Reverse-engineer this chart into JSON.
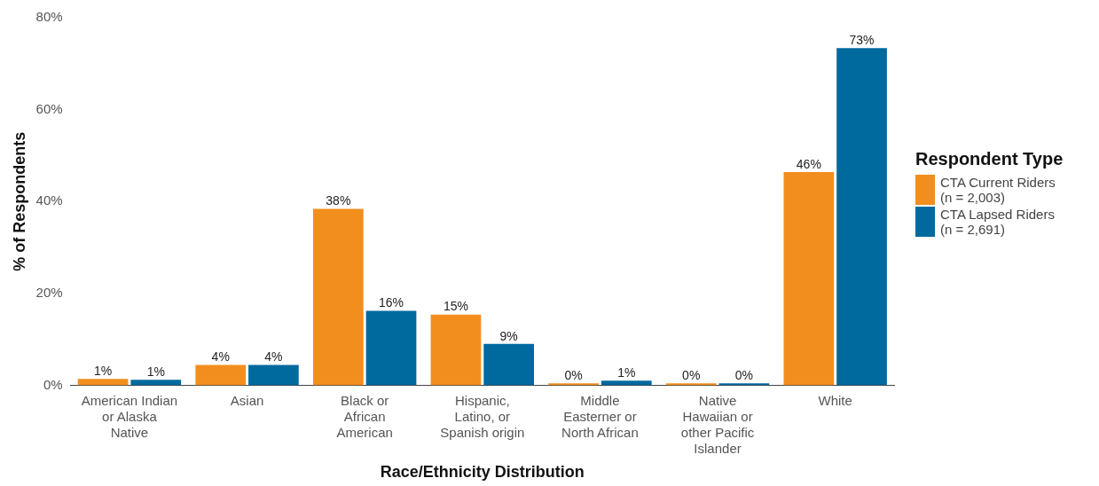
{
  "chart_data": {
    "type": "bar",
    "xlabel": "Race/Ethnicity Distribution",
    "ylabel": "% of Respondents",
    "legend_title": "Respondent Type",
    "legend": "right",
    "categories": [
      "American Indian\nor Alaska\nNative",
      "Asian",
      "Black or\nAfrican\nAmerican",
      "Hispanic,\nLatino, or\nSpanish origin",
      "Middle\nEasterner or\nNorth African",
      "Native\nHawaiian or\nother Pacific\nIslander",
      "White"
    ],
    "series": [
      {
        "name": "CTA Current Riders\n(n = 2,003)",
        "color": "#f28e1e",
        "values": [
          1.4,
          4.4,
          38.4,
          15.4,
          0.4,
          0.4,
          46.4
        ],
        "value_labels": [
          "1%",
          "4%",
          "38%",
          "15%",
          "0%",
          "0%",
          "46%"
        ]
      },
      {
        "name": "CTA Lapsed Riders\n(n = 2,691)",
        "color": "#00699e",
        "values": [
          1.2,
          4.4,
          16.2,
          9.0,
          1.0,
          0.4,
          73.4
        ],
        "value_labels": [
          "1%",
          "4%",
          "16%",
          "9%",
          "1%",
          "0%",
          "73%"
        ]
      }
    ],
    "ylim": [
      0,
      80
    ],
    "yticks": [
      {
        "value": 0,
        "label": "0%"
      },
      {
        "value": 20,
        "label": "20%"
      },
      {
        "value": 40,
        "label": "40%"
      },
      {
        "value": 60,
        "label": "60%"
      },
      {
        "value": 80,
        "label": "80%"
      }
    ],
    "grid": false
  }
}
